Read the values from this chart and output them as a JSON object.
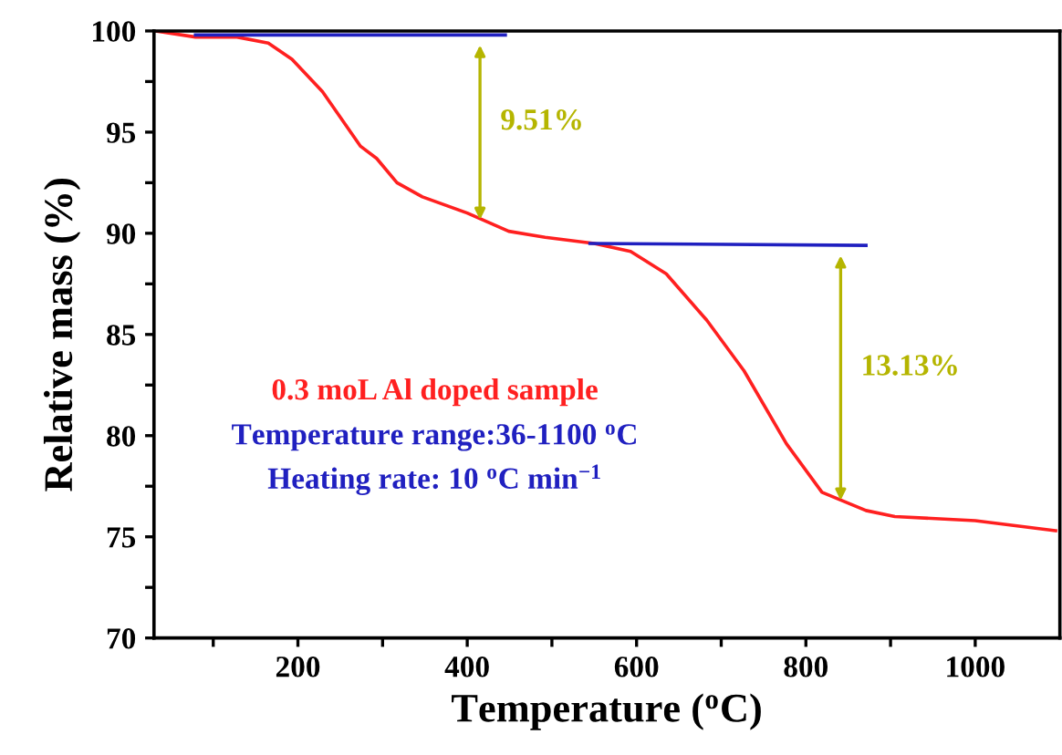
{
  "chart_data": {
    "type": "line",
    "xlabel": "Temperature ($^{o}$C)",
    "ylabel": "Relative mass (%)",
    "xlim": [
      30,
      1100
    ],
    "ylim": [
      70,
      100
    ],
    "xticks": [
      {
        "value": 100,
        "label": null
      },
      200,
      {
        "value": 300,
        "label": null
      },
      400,
      {
        "value": 500,
        "label": null
      },
      600,
      {
        "value": 700,
        "label": null
      },
      800,
      {
        "value": 900,
        "label": null
      },
      1000
    ],
    "yticks": [
      70,
      {
        "value": 72.5,
        "label": null
      },
      75,
      {
        "value": 77.5,
        "label": null
      },
      80,
      {
        "value": 82.5,
        "label": null
      },
      85,
      {
        "value": 87.5,
        "label": null
      },
      90,
      {
        "value": 92.5,
        "label": null
      },
      95,
      {
        "value": 97.5,
        "label": null
      },
      100
    ],
    "grid": false,
    "legend": false,
    "marker": "none",
    "line_style": "solid",
    "series": [
      {
        "color": "#ff2020",
        "x": [
          32,
          79,
          128,
          165,
          193,
          229,
          274,
          293,
          317,
          347,
          400,
          449,
          492,
          550,
          593,
          635,
          683,
          727,
          777,
          819,
          871,
          905,
          1000,
          1095
        ],
        "values": [
          100,
          99.7,
          99.7,
          99.4,
          98.6,
          97.0,
          94.3,
          93.7,
          92.5,
          91.8,
          91.0,
          90.1,
          89.8,
          89.5,
          89.1,
          88.0,
          85.7,
          83.2,
          79.6,
          77.2,
          76.3,
          76.0,
          75.8,
          75.3
        ]
      },
      {
        "color": "#2020c0",
        "x": [
          79,
          445
        ],
        "values": [
          99.8,
          99.8
        ]
      },
      {
        "color": "#2020c0",
        "x": [
          545,
          871
        ],
        "values": [
          89.5,
          89.4
        ]
      }
    ],
    "annotations": [
      "9.51%",
      "13.13%",
      "0.3 moL Al doped sample",
      "Temperature range:36-1100 $^{o}$C",
      "Heating rate: 10 $^{o}$C min$^{−1}$"
    ]
  }
}
